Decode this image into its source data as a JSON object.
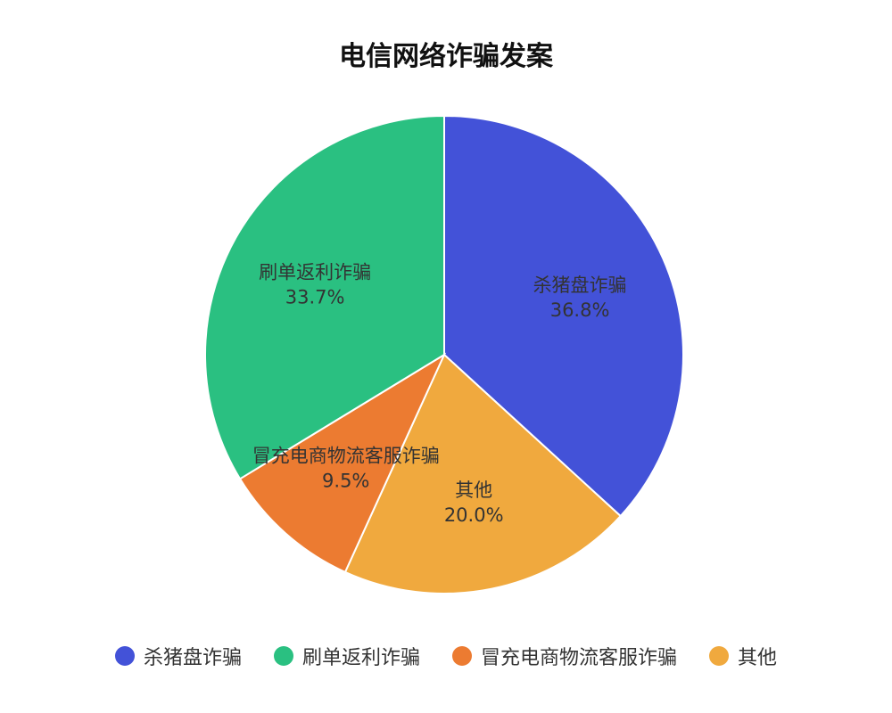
{
  "chart_data": {
    "type": "pie",
    "title": "电信网络诈骗发案",
    "slices": [
      {
        "label": "杀猪盘诈骗",
        "value": 36.8,
        "value_label": "36.8%",
        "color": "#4352d8"
      },
      {
        "label": "其他",
        "value": 20.0,
        "value_label": "20.0%",
        "color": "#f0a93e"
      },
      {
        "label": "冒充电商物流客服诈骗",
        "value": 9.5,
        "value_label": "9.5%",
        "color": "#ec7b31"
      },
      {
        "label": "刷单返利诈骗",
        "value": 33.7,
        "value_label": "33.7%",
        "color": "#2ac081"
      }
    ],
    "legend_order": [
      "杀猪盘诈骗",
      "刷单返利诈骗",
      "冒充电商物流客服诈骗",
      "其他"
    ],
    "legend_position": "bottom",
    "start_angle": "top",
    "direction": "clockwise"
  }
}
